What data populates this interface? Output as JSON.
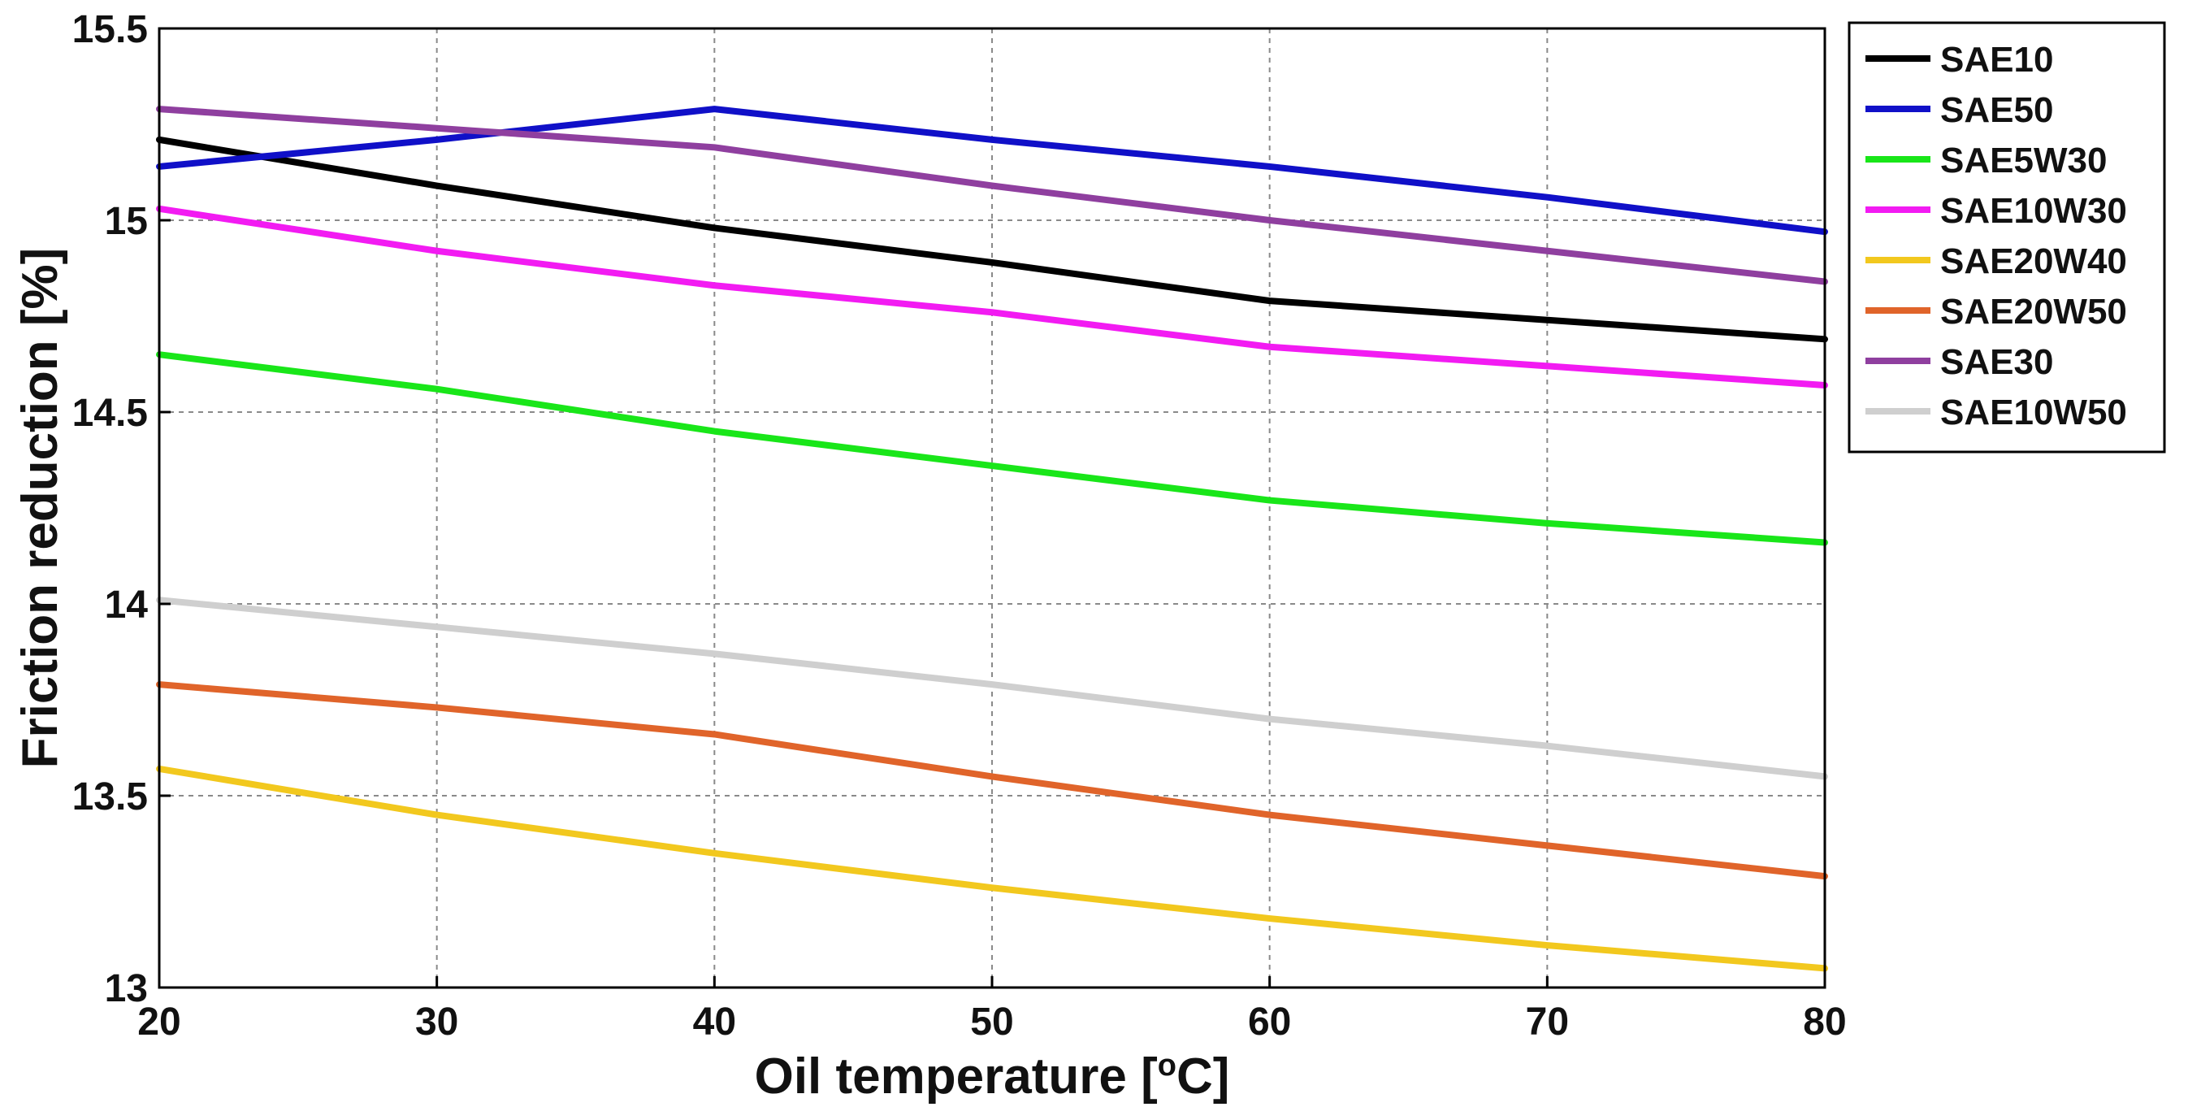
{
  "chart_data": {
    "type": "line",
    "title": "",
    "xlabel": "Oil temperature [",
    "xlabel_degree": "o",
    "xlabel_unit": "C]",
    "ylabel": "Friction reduction [%]",
    "xlim": [
      20,
      80
    ],
    "ylim": [
      13,
      15.5
    ],
    "grid": true,
    "legend_position": "outside-right-top",
    "x_ticks": [
      20,
      30,
      40,
      50,
      60,
      70,
      80
    ],
    "x_tick_labels": [
      "20",
      "30",
      "40",
      "50",
      "60",
      "70",
      "80"
    ],
    "y_ticks": [
      13,
      13.5,
      14,
      14.5,
      15,
      15.5
    ],
    "y_tick_labels": [
      "13",
      "13.5",
      "14",
      "14.5",
      "15",
      "15.5"
    ],
    "x": [
      20,
      30,
      40,
      50,
      60,
      70,
      80
    ],
    "series": [
      {
        "name": "SAE10",
        "color": "#000000",
        "values": [
          15.21,
          15.09,
          14.98,
          14.89,
          14.79,
          14.74,
          14.69
        ]
      },
      {
        "name": "SAE50",
        "color": "#1010c8",
        "values": [
          15.14,
          15.21,
          15.29,
          15.21,
          15.14,
          15.06,
          14.97
        ]
      },
      {
        "name": "SAE5W30",
        "color": "#19e619",
        "values": [
          14.65,
          14.56,
          14.45,
          14.36,
          14.27,
          14.21,
          14.16
        ]
      },
      {
        "name": "SAE10W30",
        "color": "#f21bf2",
        "values": [
          15.03,
          14.92,
          14.83,
          14.76,
          14.67,
          14.62,
          14.57
        ]
      },
      {
        "name": "SAE20W40",
        "color": "#f2c81e",
        "values": [
          13.57,
          13.45,
          13.35,
          13.26,
          13.18,
          13.11,
          13.05
        ]
      },
      {
        "name": "SAE20W50",
        "color": "#e0642a",
        "values": [
          13.79,
          13.73,
          13.66,
          13.55,
          13.45,
          13.37,
          13.29
        ]
      },
      {
        "name": "SAE30",
        "color": "#8f3f9f",
        "values": [
          15.29,
          15.24,
          15.19,
          15.09,
          15.0,
          14.92,
          14.84
        ]
      },
      {
        "name": "SAE10W50",
        "color": "#cfcfcf",
        "values": [
          14.01,
          13.94,
          13.87,
          13.79,
          13.7,
          13.63,
          13.55
        ]
      }
    ]
  }
}
